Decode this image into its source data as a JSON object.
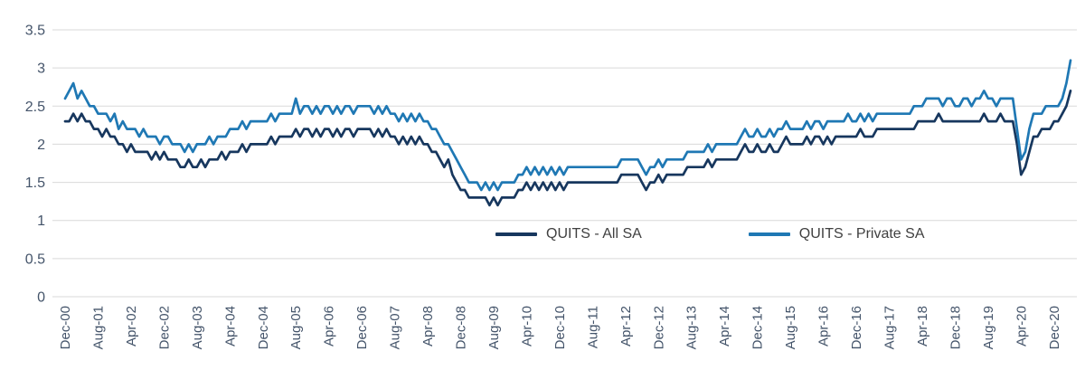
{
  "page": {
    "background": "#ffffff"
  },
  "chart_data": {
    "type": "line",
    "title": "",
    "xlabel": "",
    "ylabel": "",
    "ylim": [
      0,
      3.5
    ],
    "grid": "horizontal",
    "grid_color": "#D9D9D9",
    "axis_label_color": "#44546A",
    "legend_position": "inside-center",
    "y_ticks": [
      "0",
      "0.5",
      "1",
      "1.5",
      "2",
      "2.5",
      "3",
      "3.5"
    ],
    "x_tick_interval_months": 8,
    "x_tick_labels": [
      "Dec-00",
      "Aug-01",
      "Apr-02",
      "Dec-02",
      "Aug-03",
      "Apr-04",
      "Dec-04",
      "Aug-05",
      "Apr-06",
      "Dec-06",
      "Aug-07",
      "Apr-08",
      "Dec-08",
      "Aug-09",
      "Apr-10",
      "Dec-10",
      "Aug-11",
      "Apr-12",
      "Dec-12",
      "Aug-13",
      "Apr-14",
      "Dec-14",
      "Aug-15",
      "Apr-16",
      "Dec-16",
      "Aug-17",
      "Apr-18",
      "Dec-18",
      "Aug-19",
      "Apr-20",
      "Dec-20"
    ],
    "x_start": "Dec-00",
    "x_frequency": "monthly",
    "series": [
      {
        "name": "QUITS - All SA",
        "color": "#17375E",
        "values": [
          2.3,
          2.3,
          2.4,
          2.3,
          2.4,
          2.3,
          2.3,
          2.2,
          2.2,
          2.1,
          2.2,
          2.1,
          2.1,
          2.0,
          2.0,
          1.9,
          2.0,
          1.9,
          1.9,
          1.9,
          1.9,
          1.8,
          1.9,
          1.8,
          1.9,
          1.8,
          1.8,
          1.8,
          1.7,
          1.7,
          1.8,
          1.7,
          1.7,
          1.8,
          1.7,
          1.8,
          1.8,
          1.8,
          1.9,
          1.8,
          1.9,
          1.9,
          1.9,
          2.0,
          1.9,
          2.0,
          2.0,
          2.0,
          2.0,
          2.0,
          2.1,
          2.0,
          2.1,
          2.1,
          2.1,
          2.1,
          2.2,
          2.1,
          2.2,
          2.2,
          2.1,
          2.2,
          2.1,
          2.2,
          2.2,
          2.1,
          2.2,
          2.1,
          2.2,
          2.2,
          2.1,
          2.2,
          2.2,
          2.2,
          2.2,
          2.1,
          2.2,
          2.1,
          2.2,
          2.1,
          2.1,
          2.0,
          2.1,
          2.0,
          2.1,
          2.0,
          2.1,
          2.0,
          2.0,
          1.9,
          1.9,
          1.8,
          1.7,
          1.8,
          1.6,
          1.5,
          1.4,
          1.4,
          1.3,
          1.3,
          1.3,
          1.3,
          1.3,
          1.2,
          1.3,
          1.2,
          1.3,
          1.3,
          1.3,
          1.3,
          1.4,
          1.4,
          1.5,
          1.4,
          1.5,
          1.4,
          1.5,
          1.4,
          1.5,
          1.4,
          1.5,
          1.4,
          1.5,
          1.5,
          1.5,
          1.5,
          1.5,
          1.5,
          1.5,
          1.5,
          1.5,
          1.5,
          1.5,
          1.5,
          1.5,
          1.6,
          1.6,
          1.6,
          1.6,
          1.6,
          1.5,
          1.4,
          1.5,
          1.5,
          1.6,
          1.5,
          1.6,
          1.6,
          1.6,
          1.6,
          1.6,
          1.7,
          1.7,
          1.7,
          1.7,
          1.7,
          1.8,
          1.7,
          1.8,
          1.8,
          1.8,
          1.8,
          1.8,
          1.8,
          1.9,
          2.0,
          1.9,
          1.9,
          2.0,
          1.9,
          1.9,
          2.0,
          1.9,
          1.9,
          2.0,
          2.1,
          2.0,
          2.0,
          2.0,
          2.0,
          2.1,
          2.0,
          2.1,
          2.1,
          2.0,
          2.1,
          2.0,
          2.1,
          2.1,
          2.1,
          2.1,
          2.1,
          2.1,
          2.2,
          2.1,
          2.1,
          2.1,
          2.2,
          2.2,
          2.2,
          2.2,
          2.2,
          2.2,
          2.2,
          2.2,
          2.2,
          2.2,
          2.3,
          2.3,
          2.3,
          2.3,
          2.3,
          2.4,
          2.3,
          2.3,
          2.3,
          2.3,
          2.3,
          2.3,
          2.3,
          2.3,
          2.3,
          2.3,
          2.4,
          2.3,
          2.3,
          2.3,
          2.4,
          2.3,
          2.3,
          2.3,
          2.0,
          1.6,
          1.7,
          1.9,
          2.1,
          2.1,
          2.2,
          2.2,
          2.2,
          2.3,
          2.3,
          2.4,
          2.5,
          2.7
        ]
      },
      {
        "name": "QUITS - Private SA",
        "color": "#1F78B4",
        "values": [
          2.6,
          2.7,
          2.8,
          2.6,
          2.7,
          2.6,
          2.5,
          2.5,
          2.4,
          2.4,
          2.4,
          2.3,
          2.4,
          2.2,
          2.3,
          2.2,
          2.2,
          2.2,
          2.1,
          2.2,
          2.1,
          2.1,
          2.1,
          2.0,
          2.1,
          2.1,
          2.0,
          2.0,
          2.0,
          1.9,
          2.0,
          1.9,
          2.0,
          2.0,
          2.0,
          2.1,
          2.0,
          2.1,
          2.1,
          2.1,
          2.2,
          2.2,
          2.2,
          2.3,
          2.2,
          2.3,
          2.3,
          2.3,
          2.3,
          2.3,
          2.4,
          2.3,
          2.4,
          2.4,
          2.4,
          2.4,
          2.6,
          2.4,
          2.5,
          2.5,
          2.4,
          2.5,
          2.4,
          2.5,
          2.5,
          2.4,
          2.5,
          2.4,
          2.5,
          2.5,
          2.4,
          2.5,
          2.5,
          2.5,
          2.5,
          2.4,
          2.5,
          2.4,
          2.5,
          2.4,
          2.4,
          2.3,
          2.4,
          2.3,
          2.4,
          2.3,
          2.4,
          2.3,
          2.3,
          2.2,
          2.2,
          2.1,
          2.0,
          2.0,
          1.9,
          1.8,
          1.7,
          1.6,
          1.5,
          1.5,
          1.5,
          1.4,
          1.5,
          1.4,
          1.5,
          1.4,
          1.5,
          1.5,
          1.5,
          1.5,
          1.6,
          1.6,
          1.7,
          1.6,
          1.7,
          1.6,
          1.7,
          1.6,
          1.7,
          1.6,
          1.7,
          1.6,
          1.7,
          1.7,
          1.7,
          1.7,
          1.7,
          1.7,
          1.7,
          1.7,
          1.7,
          1.7,
          1.7,
          1.7,
          1.7,
          1.8,
          1.8,
          1.8,
          1.8,
          1.8,
          1.7,
          1.6,
          1.7,
          1.7,
          1.8,
          1.7,
          1.8,
          1.8,
          1.8,
          1.8,
          1.8,
          1.9,
          1.9,
          1.9,
          1.9,
          1.9,
          2.0,
          1.9,
          2.0,
          2.0,
          2.0,
          2.0,
          2.0,
          2.0,
          2.1,
          2.2,
          2.1,
          2.1,
          2.2,
          2.1,
          2.1,
          2.2,
          2.1,
          2.2,
          2.2,
          2.3,
          2.2,
          2.2,
          2.2,
          2.2,
          2.3,
          2.2,
          2.3,
          2.3,
          2.2,
          2.3,
          2.3,
          2.3,
          2.3,
          2.3,
          2.4,
          2.3,
          2.3,
          2.4,
          2.3,
          2.4,
          2.3,
          2.4,
          2.4,
          2.4,
          2.4,
          2.4,
          2.4,
          2.4,
          2.4,
          2.4,
          2.5,
          2.5,
          2.5,
          2.6,
          2.6,
          2.6,
          2.6,
          2.5,
          2.6,
          2.6,
          2.5,
          2.5,
          2.6,
          2.6,
          2.5,
          2.6,
          2.6,
          2.7,
          2.6,
          2.6,
          2.5,
          2.6,
          2.6,
          2.6,
          2.6,
          2.2,
          1.8,
          1.9,
          2.2,
          2.4,
          2.4,
          2.4,
          2.5,
          2.5,
          2.5,
          2.5,
          2.6,
          2.8,
          3.1
        ]
      }
    ]
  }
}
